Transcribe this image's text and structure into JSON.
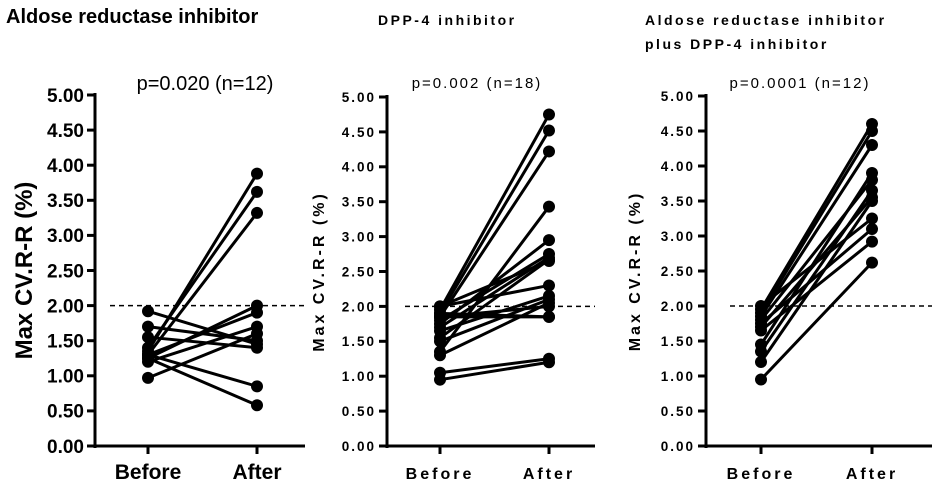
{
  "chart_data": [
    {
      "type": "line",
      "title": "Aldose reductase inhibitor",
      "annotation": "p=0.020 (n=12)",
      "ylabel": "Max CV.R-R (%)",
      "categories": [
        "Before",
        "After"
      ],
      "ylim": [
        0,
        5
      ],
      "yticks": [
        "0.00",
        "0.50",
        "1.00",
        "1.50",
        "2.00",
        "2.50",
        "3.00",
        "3.50",
        "4.00",
        "4.50",
        "5.00"
      ],
      "reference_line": 2.0,
      "pairs": [
        [
          1.35,
          3.88
        ],
        [
          1.4,
          3.62
        ],
        [
          1.3,
          3.32
        ],
        [
          1.92,
          1.45
        ],
        [
          1.7,
          1.5
        ],
        [
          1.25,
          2.0
        ],
        [
          1.3,
          1.9
        ],
        [
          0.97,
          1.6
        ],
        [
          1.2,
          1.7
        ],
        [
          1.55,
          1.4
        ],
        [
          1.3,
          0.85
        ],
        [
          1.25,
          0.58
        ]
      ]
    },
    {
      "type": "line",
      "title": "DPP-4 inhibitor",
      "annotation": "p=0.002 (n=18)",
      "ylabel": "Max CV.R-R (%)",
      "categories": [
        "Before",
        "After"
      ],
      "ylim": [
        0,
        5
      ],
      "yticks": [
        "0.00",
        "0.50",
        "1.00",
        "1.50",
        "2.00",
        "2.50",
        "3.00",
        "3.50",
        "4.00",
        "4.50",
        "5.00"
      ],
      "reference_line": 2.0,
      "pairs": [
        [
          1.95,
          4.75
        ],
        [
          1.9,
          4.52
        ],
        [
          1.85,
          4.22
        ],
        [
          1.35,
          3.43
        ],
        [
          1.75,
          2.95
        ],
        [
          1.8,
          2.75
        ],
        [
          1.7,
          2.7
        ],
        [
          1.55,
          2.67
        ],
        [
          2.0,
          2.3
        ],
        [
          1.65,
          2.15
        ],
        [
          1.5,
          2.1
        ],
        [
          1.3,
          2.05
        ],
        [
          1.85,
          2.0
        ],
        [
          1.9,
          1.85
        ],
        [
          1.85,
          1.85
        ],
        [
          1.05,
          1.25
        ],
        [
          0.95,
          1.2
        ],
        [
          2.0,
          2.65
        ]
      ]
    },
    {
      "type": "line",
      "title": "Aldose reductase inhibitor plus DPP-4 inhibitor",
      "title_lines": [
        "Aldose reductase inhibitor",
        "plus DPP-4 inhibitor"
      ],
      "annotation": "p=0.0001 (n=12)",
      "ylabel": "Max CV.R-R (%)",
      "categories": [
        "Before",
        "After"
      ],
      "ylim": [
        0,
        5
      ],
      "yticks": [
        "0.00",
        "0.50",
        "1.00",
        "1.50",
        "2.00",
        "2.50",
        "3.00",
        "3.50",
        "4.00",
        "4.50",
        "5.00"
      ],
      "reference_line": 2.0,
      "pairs": [
        [
          1.95,
          4.6
        ],
        [
          1.9,
          4.5
        ],
        [
          1.85,
          4.3
        ],
        [
          1.45,
          3.9
        ],
        [
          1.8,
          3.8
        ],
        [
          1.35,
          3.65
        ],
        [
          1.7,
          3.55
        ],
        [
          1.2,
          3.5
        ],
        [
          2.0,
          3.25
        ],
        [
          1.75,
          3.1
        ],
        [
          1.65,
          2.92
        ],
        [
          0.95,
          2.62
        ]
      ]
    }
  ]
}
